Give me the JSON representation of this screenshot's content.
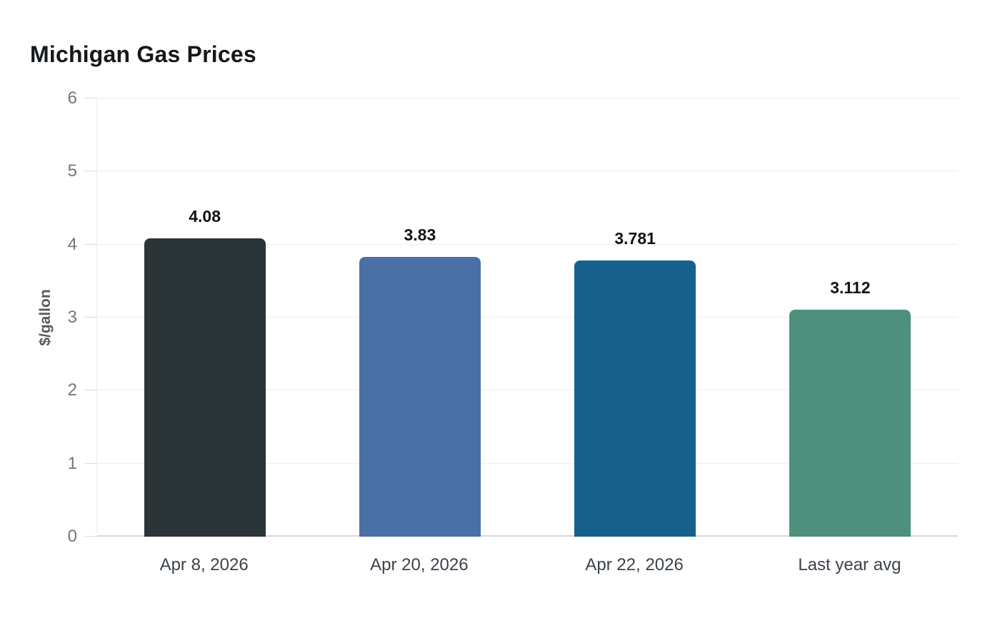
{
  "chart_data": {
    "type": "bar",
    "title": "Michigan Gas Prices",
    "xlabel": "",
    "ylabel": "$/gallon",
    "categories": [
      "Apr 8, 2026",
      "Apr 20, 2026",
      "Apr 22, 2026",
      "Last year avg"
    ],
    "values": [
      4.08,
      3.83,
      3.781,
      3.112
    ],
    "value_labels": [
      "4.08",
      "3.83",
      "3.781",
      "3.112"
    ],
    "bar_colors": [
      "#2b3436",
      "#4b70a5",
      "#17608c",
      "#4f8f7d"
    ],
    "ylim": [
      0,
      6
    ],
    "yticks": [
      0,
      1,
      2,
      3,
      4,
      5,
      6
    ],
    "grid": "horizontal",
    "legend": "none"
  },
  "style_colors": {
    "background": "#ffffff",
    "title": "#16191c",
    "gridline": "#ededed",
    "zero_line": "#d8d8d8",
    "tick_label": "#757575",
    "axis_label": "#595959",
    "x_label": "#3c434c",
    "value_label": "#131313"
  }
}
